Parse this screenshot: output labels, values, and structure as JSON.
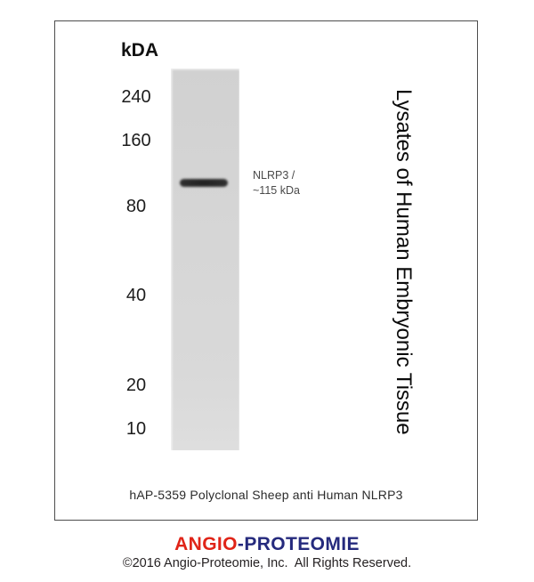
{
  "figure": {
    "unit_label": "kDA",
    "markers": [
      "240",
      "160",
      "80",
      "40",
      "20",
      "10"
    ],
    "ladder_kda_values": [
      240,
      160,
      80,
      40,
      20,
      10
    ],
    "band": {
      "protein": "NLRP3",
      "approx_molecular_weight_kda": 115
    },
    "band_label": [
      "NLRP3 /",
      "~115 kDa"
    ],
    "sample_label": "Lysates of Human Embryonic Tissue",
    "caption": "hAP-5359 Polyclonal Sheep anti Human NLRP3"
  },
  "footer": {
    "logo": {
      "angio": "ANGIO",
      "hyphen": "-",
      "proteomie": "PROTEOMIE"
    },
    "copyright": "©2016 Angio-Proteomie, Inc.  All Rights Reserved."
  },
  "colors": {
    "logo_red": "#e02418",
    "logo_navy": "#252a7d",
    "band_dark": "#2d2d2d",
    "lane_gray": "#d6d6d6",
    "box_border": "#4d4d4d"
  }
}
